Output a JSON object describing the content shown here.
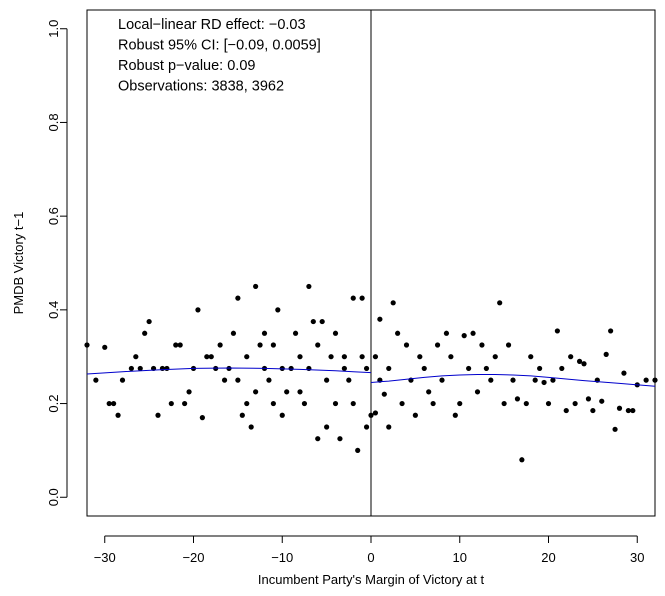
{
  "chart_data": {
    "type": "scatter",
    "xlabel": "Incumbent Party's Margin of Victory at t",
    "ylabel": "PMDB Victory t−1",
    "xlim": [
      -32,
      32
    ],
    "ylim": [
      -0.04,
      1.04
    ],
    "xticks": [
      -30,
      -20,
      -10,
      0,
      10,
      20,
      30
    ],
    "xtick_labels": [
      "−30",
      "−20",
      "−10",
      "0",
      "10",
      "20",
      "30"
    ],
    "yticks": [
      0.0,
      0.2,
      0.4,
      0.6,
      0.8,
      1.0
    ],
    "ytick_labels": [
      "0.0",
      "0.2",
      "0.4",
      "0.6",
      "0.8",
      "1.0"
    ],
    "cutoff_x": 0,
    "annotations": [
      "Local−linear RD effect: −0.03",
      "Robust 95% CI:  [−0.09, 0.0059]",
      "Robust p−value: 0.09",
      "Observations: 3838, 3962"
    ],
    "fit_color": "#0000cc",
    "point_color": "#000000",
    "fit_left": {
      "x": [
        -32,
        -28,
        -24,
        -20,
        -16,
        -12,
        -8,
        -4,
        -2,
        0
      ],
      "y": [
        0.263,
        0.268,
        0.272,
        0.275,
        0.276,
        0.275,
        0.273,
        0.27,
        0.268,
        0.266
      ]
    },
    "fit_right": {
      "x": [
        0,
        2,
        4,
        6,
        8,
        10,
        12,
        14,
        16,
        18,
        20,
        24,
        28,
        32
      ],
      "y": [
        0.245,
        0.248,
        0.252,
        0.256,
        0.259,
        0.261,
        0.262,
        0.262,
        0.261,
        0.259,
        0.256,
        0.249,
        0.243,
        0.237
      ]
    },
    "points": [
      [
        -32,
        0.325
      ],
      [
        -31,
        0.25
      ],
      [
        -30,
        0.32
      ],
      [
        -29.5,
        0.2
      ],
      [
        -29,
        0.2
      ],
      [
        -28.5,
        0.175
      ],
      [
        -28,
        0.25
      ],
      [
        -27,
        0.275
      ],
      [
        -26.5,
        0.3
      ],
      [
        -26,
        0.275
      ],
      [
        -25.5,
        0.35
      ],
      [
        -25,
        0.375
      ],
      [
        -24.5,
        0.275
      ],
      [
        -24,
        0.175
      ],
      [
        -23.5,
        0.275
      ],
      [
        -23,
        0.275
      ],
      [
        -22.5,
        0.2
      ],
      [
        -22,
        0.325
      ],
      [
        -21.5,
        0.325
      ],
      [
        -21,
        0.2
      ],
      [
        -20.5,
        0.225
      ],
      [
        -20,
        0.275
      ],
      [
        -19.5,
        0.4
      ],
      [
        -19,
        0.17
      ],
      [
        -18.5,
        0.3
      ],
      [
        -18,
        0.3
      ],
      [
        -17.5,
        0.275
      ],
      [
        -17,
        0.325
      ],
      [
        -16.5,
        0.25
      ],
      [
        -16,
        0.275
      ],
      [
        -15.5,
        0.35
      ],
      [
        -15,
        0.25
      ],
      [
        -15,
        0.425
      ],
      [
        -14.5,
        0.175
      ],
      [
        -14,
        0.2
      ],
      [
        -14,
        0.3
      ],
      [
        -13.5,
        0.15
      ],
      [
        -13,
        0.45
      ],
      [
        -13,
        0.225
      ],
      [
        -12.5,
        0.325
      ],
      [
        -12,
        0.35
      ],
      [
        -12,
        0.275
      ],
      [
        -11.5,
        0.25
      ],
      [
        -11,
        0.325
      ],
      [
        -11,
        0.2
      ],
      [
        -10.5,
        0.4
      ],
      [
        -10,
        0.275
      ],
      [
        -10,
        0.175
      ],
      [
        -9.5,
        0.225
      ],
      [
        -9,
        0.275
      ],
      [
        -8.5,
        0.35
      ],
      [
        -8,
        0.3
      ],
      [
        -8,
        0.225
      ],
      [
        -7.5,
        0.2
      ],
      [
        -7,
        0.45
      ],
      [
        -7,
        0.275
      ],
      [
        -6.5,
        0.375
      ],
      [
        -6,
        0.125
      ],
      [
        -6,
        0.325
      ],
      [
        -5.5,
        0.375
      ],
      [
        -5,
        0.25
      ],
      [
        -5,
        0.15
      ],
      [
        -4.5,
        0.3
      ],
      [
        -4,
        0.35
      ],
      [
        -4,
        0.2
      ],
      [
        -3.5,
        0.125
      ],
      [
        -3,
        0.275
      ],
      [
        -3,
        0.3
      ],
      [
        -2.5,
        0.25
      ],
      [
        -2,
        0.425
      ],
      [
        -2,
        0.2
      ],
      [
        -1.5,
        0.1
      ],
      [
        -1,
        0.3
      ],
      [
        -1,
        0.425
      ],
      [
        -0.5,
        0.275
      ],
      [
        -0.5,
        0.15
      ],
      [
        0,
        0.175
      ],
      [
        0.5,
        0.3
      ],
      [
        0.5,
        0.18
      ],
      [
        1,
        0.25
      ],
      [
        1,
        0.38
      ],
      [
        1.5,
        0.22
      ],
      [
        2,
        0.15
      ],
      [
        2,
        0.275
      ],
      [
        2.5,
        0.415
      ],
      [
        3,
        0.35
      ],
      [
        3.5,
        0.2
      ],
      [
        4,
        0.325
      ],
      [
        4.5,
        0.25
      ],
      [
        5,
        0.175
      ],
      [
        5.5,
        0.3
      ],
      [
        6,
        0.275
      ],
      [
        6.5,
        0.225
      ],
      [
        7,
        0.2
      ],
      [
        7.5,
        0.325
      ],
      [
        8,
        0.25
      ],
      [
        8.5,
        0.35
      ],
      [
        9,
        0.3
      ],
      [
        9.5,
        0.175
      ],
      [
        10,
        0.2
      ],
      [
        10.5,
        0.345
      ],
      [
        11,
        0.275
      ],
      [
        11.5,
        0.35
      ],
      [
        12,
        0.225
      ],
      [
        12.5,
        0.325
      ],
      [
        13,
        0.275
      ],
      [
        13.5,
        0.25
      ],
      [
        14,
        0.3
      ],
      [
        14.5,
        0.415
      ],
      [
        15,
        0.2
      ],
      [
        15.5,
        0.325
      ],
      [
        16,
        0.25
      ],
      [
        16.5,
        0.21
      ],
      [
        17,
        0.08
      ],
      [
        17.5,
        0.2
      ],
      [
        18,
        0.3
      ],
      [
        18.5,
        0.25
      ],
      [
        19,
        0.275
      ],
      [
        19.5,
        0.245
      ],
      [
        20,
        0.2
      ],
      [
        20.5,
        0.25
      ],
      [
        21,
        0.355
      ],
      [
        21.5,
        0.275
      ],
      [
        22,
        0.185
      ],
      [
        22.5,
        0.3
      ],
      [
        23,
        0.2
      ],
      [
        23.5,
        0.29
      ],
      [
        24,
        0.285
      ],
      [
        24.5,
        0.21
      ],
      [
        25,
        0.185
      ],
      [
        25.5,
        0.25
      ],
      [
        26,
        0.205
      ],
      [
        26.5,
        0.305
      ],
      [
        27,
        0.355
      ],
      [
        27.5,
        0.145
      ],
      [
        28,
        0.19
      ],
      [
        28.5,
        0.265
      ],
      [
        29,
        0.185
      ],
      [
        29.5,
        0.185
      ],
      [
        30,
        0.24
      ],
      [
        31,
        0.25
      ],
      [
        32,
        0.25
      ]
    ]
  }
}
